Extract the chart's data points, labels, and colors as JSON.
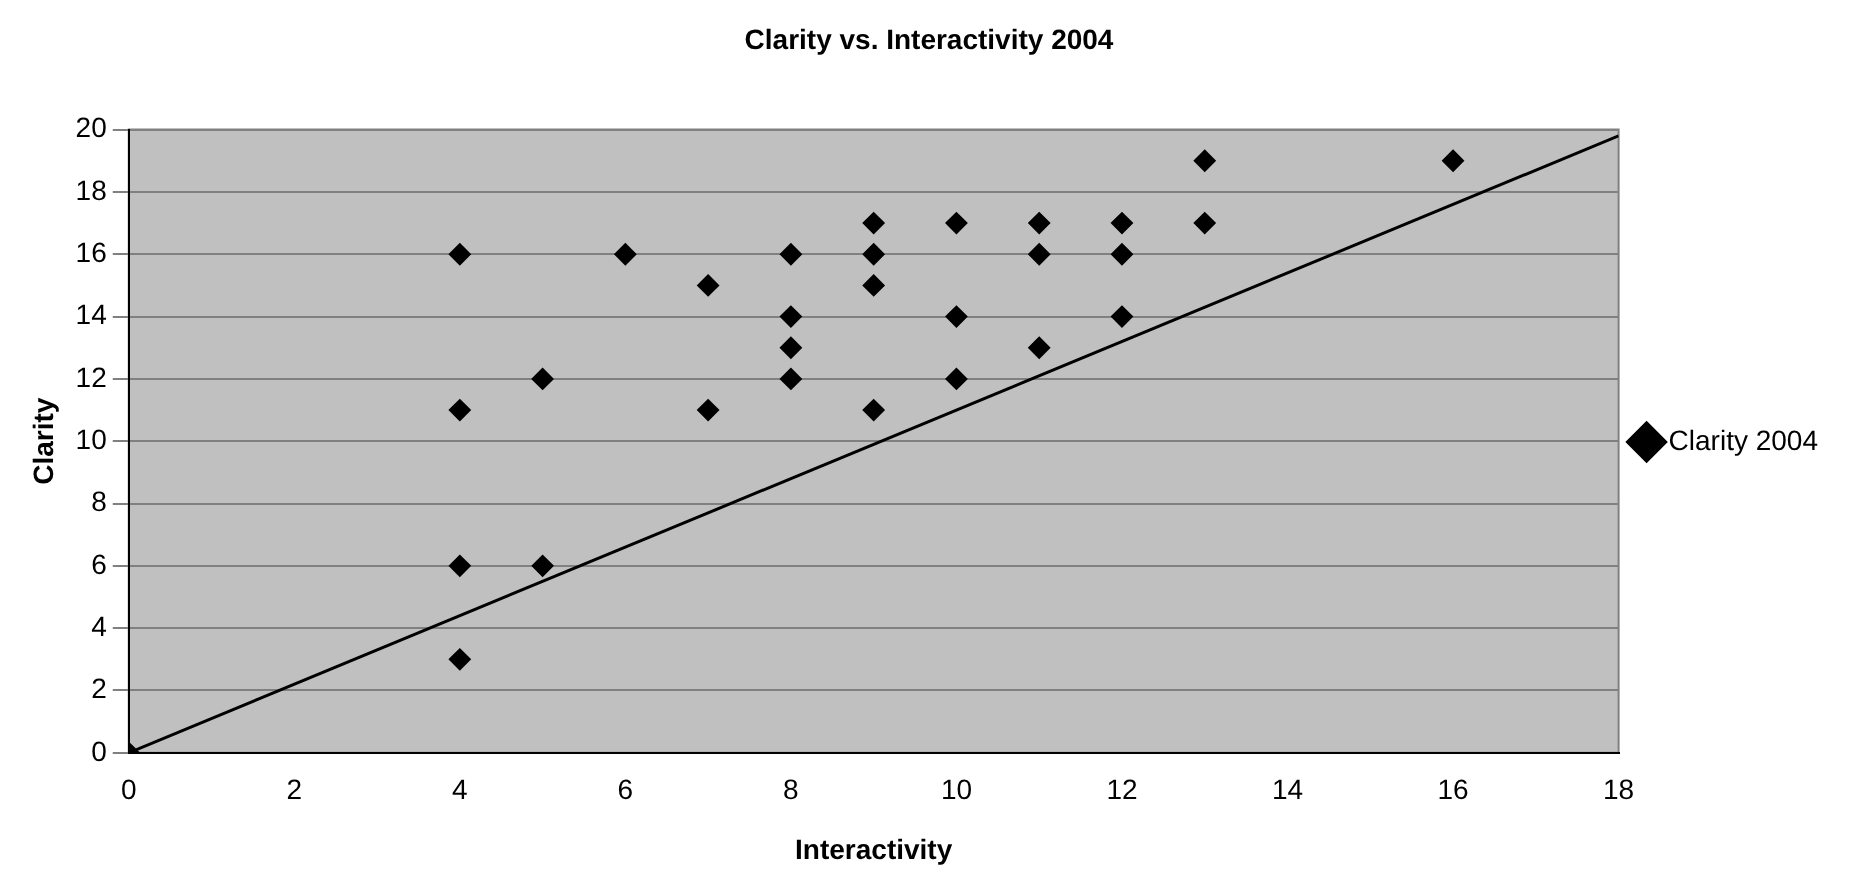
{
  "chart_data": {
    "type": "scatter",
    "title": "Clarity vs. Interactivity 2004",
    "xlabel": "Interactivity",
    "ylabel": "Clarity",
    "xlim": [
      0,
      18
    ],
    "xticks": [
      0,
      2,
      4,
      6,
      8,
      10,
      12,
      14,
      16,
      18
    ],
    "ylim": [
      0,
      20
    ],
    "yticks": [
      0,
      2,
      4,
      6,
      8,
      10,
      12,
      14,
      16,
      18,
      20
    ],
    "grid": "y",
    "legend": "right",
    "marker": "diamond",
    "series": [
      {
        "name": "Clarity 2004",
        "color": "#000000",
        "x": [
          0,
          4,
          4,
          4,
          4,
          5,
          5,
          6,
          7,
          7,
          8,
          8,
          8,
          8,
          9,
          9,
          9,
          9,
          10,
          10,
          10,
          11,
          11,
          11,
          12,
          12,
          12,
          13,
          13,
          16
        ],
        "values": [
          0,
          16,
          11,
          6,
          3,
          12,
          6,
          16,
          15,
          11,
          16,
          14,
          13,
          12,
          17,
          16,
          15,
          11,
          17,
          14,
          12,
          17,
          16,
          13,
          17,
          16,
          14,
          19,
          17,
          19
        ]
      },
      {
        "type": "line",
        "color": "#000000",
        "marker": "none",
        "x": [
          0,
          18
        ],
        "values": [
          0,
          19.8
        ]
      }
    ]
  }
}
